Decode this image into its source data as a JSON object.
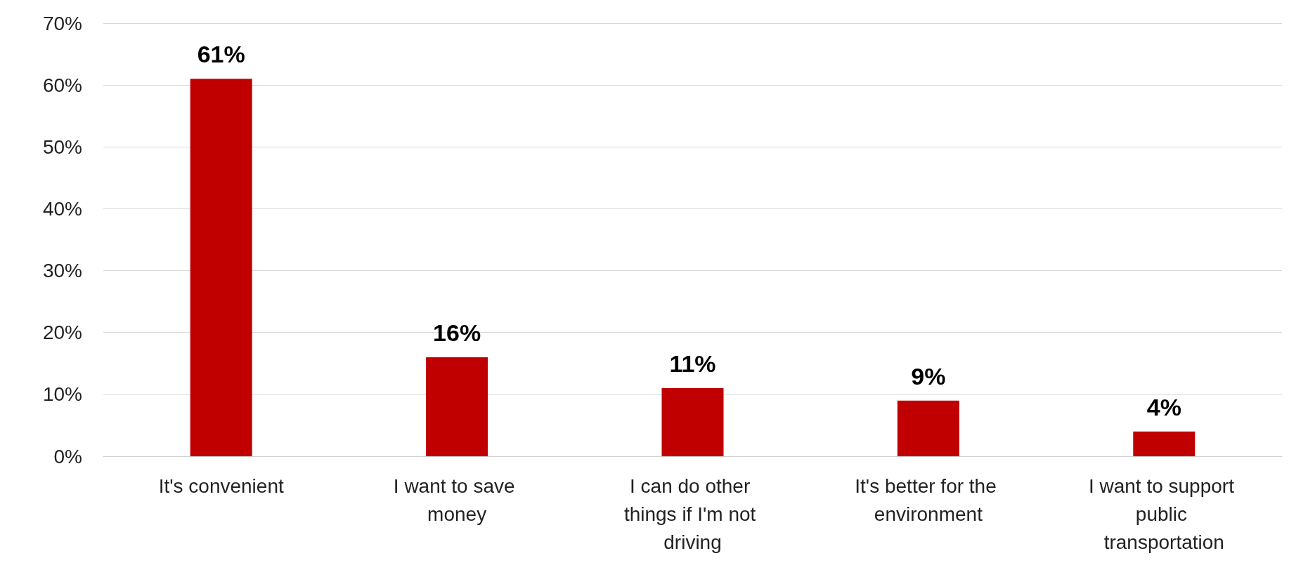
{
  "chart_data": {
    "type": "bar",
    "categories": [
      "It's convenient",
      "I want to save money",
      "I can do other things if I'm not driving",
      "It's better for the environment",
      "I want to support public transportation"
    ],
    "values": [
      61,
      16,
      11,
      9,
      4
    ],
    "value_labels": [
      "61%",
      "16%",
      "11%",
      "9%",
      "4%"
    ],
    "color": "#c00000",
    "ylim": [
      0,
      70
    ],
    "yticks": [
      {
        "value": 0,
        "label": "0%"
      },
      {
        "value": 10,
        "label": "10%"
      },
      {
        "value": 20,
        "label": "20%"
      },
      {
        "value": 30,
        "label": "30%"
      },
      {
        "value": 40,
        "label": "40%"
      },
      {
        "value": 50,
        "label": "50%"
      },
      {
        "value": 60,
        "label": "60%"
      },
      {
        "value": 70,
        "label": "70%"
      }
    ],
    "grid": "y"
  }
}
